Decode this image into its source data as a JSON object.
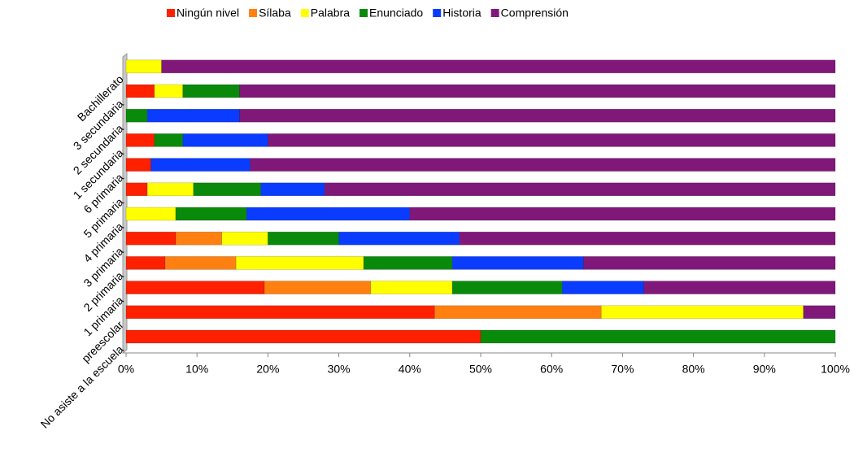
{
  "chart_data": {
    "type": "stacked-barh",
    "categories": [
      "No asiste a la escuela",
      "preescolar",
      "1 primaria",
      "2 primaria",
      "3 primaria",
      "4 primaria",
      "5 primaria",
      "6 primaria",
      "1 secundaria",
      "2 secundaria",
      "3 secundaria",
      "Bachillerato"
    ],
    "series": [
      {
        "name": "Ningún nivel",
        "color": "#ff2000",
        "values": [
          50,
          43.5,
          19.5,
          5.5,
          7,
          0,
          3,
          3.5,
          4,
          0,
          4,
          0
        ]
      },
      {
        "name": "Sílaba",
        "color": "#ff8010",
        "values": [
          0,
          23.5,
          15,
          10,
          6.5,
          0,
          0,
          0,
          0,
          0,
          0,
          0
        ]
      },
      {
        "name": "Palabra",
        "color": "#ffff00",
        "values": [
          0,
          28.5,
          11.5,
          18,
          6.5,
          7,
          6.5,
          0,
          0,
          0,
          4,
          5
        ]
      },
      {
        "name": "Enunciado",
        "color": "#0a8a0a",
        "values": [
          50,
          0,
          15.5,
          12.5,
          10,
          10,
          9.5,
          0,
          4,
          3,
          8,
          0
        ]
      },
      {
        "name": "Historia",
        "color": "#0a3cff",
        "values": [
          0,
          0,
          11.5,
          18.5,
          17,
          23,
          9,
          14,
          12,
          13,
          0,
          0
        ]
      },
      {
        "name": "Comprensión",
        "color": "#80187a",
        "values": [
          0,
          4.5,
          27,
          35.5,
          53,
          60,
          72,
          82.5,
          80,
          84,
          84,
          95
        ]
      }
    ],
    "xlim": [
      0,
      100
    ],
    "xticks": [
      {
        "value": 0,
        "label": "0%"
      },
      {
        "value": 10,
        "label": "10%"
      },
      {
        "value": 20,
        "label": "20%"
      },
      {
        "value": 30,
        "label": "30%"
      },
      {
        "value": 40,
        "label": "40%"
      },
      {
        "value": 50,
        "label": "50%"
      },
      {
        "value": 60,
        "label": "60%"
      },
      {
        "value": 70,
        "label": "70%"
      },
      {
        "value": 80,
        "label": "80%"
      },
      {
        "value": 90,
        "label": "90%"
      },
      {
        "value": 100,
        "label": "100%"
      }
    ],
    "legend": "top"
  }
}
